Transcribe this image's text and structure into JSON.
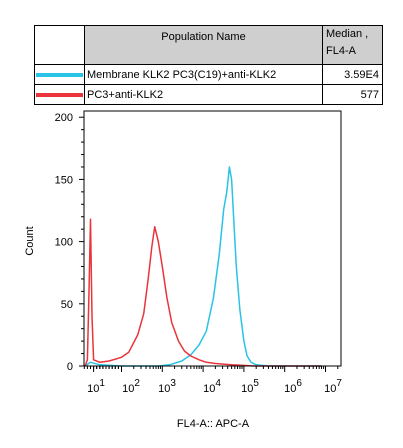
{
  "legend": {
    "header_population": "Population Name",
    "header_median": "Median , FL4-A",
    "rows": [
      {
        "name": "Membrane KLK2 PC3(C19)+anti-KLK2",
        "median": "3.59E4",
        "color": "#29c3e5"
      },
      {
        "name": "PC3+anti-KLK2",
        "median": "577",
        "color": "#e8343a"
      }
    ]
  },
  "chart_data": {
    "type": "line",
    "xlabel": "FL4-A:: APC-A",
    "ylabel": "Count",
    "x_scale": "log",
    "xlim": [
      -20,
      8000000
    ],
    "ylim": [
      0,
      205
    ],
    "y_ticks": [
      0,
      50,
      100,
      150,
      200
    ],
    "x_tick_labels": [
      {
        "base": "10",
        "exp": "1"
      },
      {
        "base": "10",
        "exp": "2"
      },
      {
        "base": "10",
        "exp": "3"
      },
      {
        "base": "10",
        "exp": "4"
      },
      {
        "base": "10",
        "exp": "5"
      },
      {
        "base": "10",
        "exp": "6"
      },
      {
        "base": "10",
        "exp": "7"
      }
    ],
    "series": [
      {
        "name": "Membrane KLK2 PC3(C19)+anti-KLK2",
        "color": "#29c3e5",
        "x": [
          -20,
          0,
          30,
          100,
          200,
          400,
          800,
          1500,
          3000,
          5000,
          8000,
          12000,
          18000,
          25000,
          32000,
          38000,
          44000,
          50000,
          56000,
          65000,
          80000,
          100000,
          120000,
          150000,
          200000,
          400000,
          1000000,
          8000000
        ],
        "y": [
          0,
          3,
          1,
          0,
          0,
          0,
          0,
          1,
          4,
          9,
          17,
          28,
          55,
          90,
          126,
          140,
          160,
          150,
          120,
          80,
          45,
          20,
          8,
          3,
          1,
          0,
          0,
          0
        ]
      },
      {
        "name": "PC3+anti-KLK2",
        "color": "#e8343a",
        "x": [
          -20,
          -10,
          -5,
          0,
          5,
          10,
          30,
          60,
          100,
          150,
          250,
          350,
          450,
          550,
          650,
          800,
          1000,
          1300,
          1700,
          2500,
          3500,
          5000,
          8000,
          12000,
          20000,
          50000,
          200000,
          8000000
        ],
        "y": [
          0,
          5,
          60,
          118,
          40,
          5,
          3,
          4,
          7,
          11,
          25,
          42,
          70,
          95,
          112,
          100,
          80,
          55,
          35,
          20,
          12,
          8,
          5,
          3,
          2,
          1,
          0,
          0
        ]
      }
    ]
  }
}
